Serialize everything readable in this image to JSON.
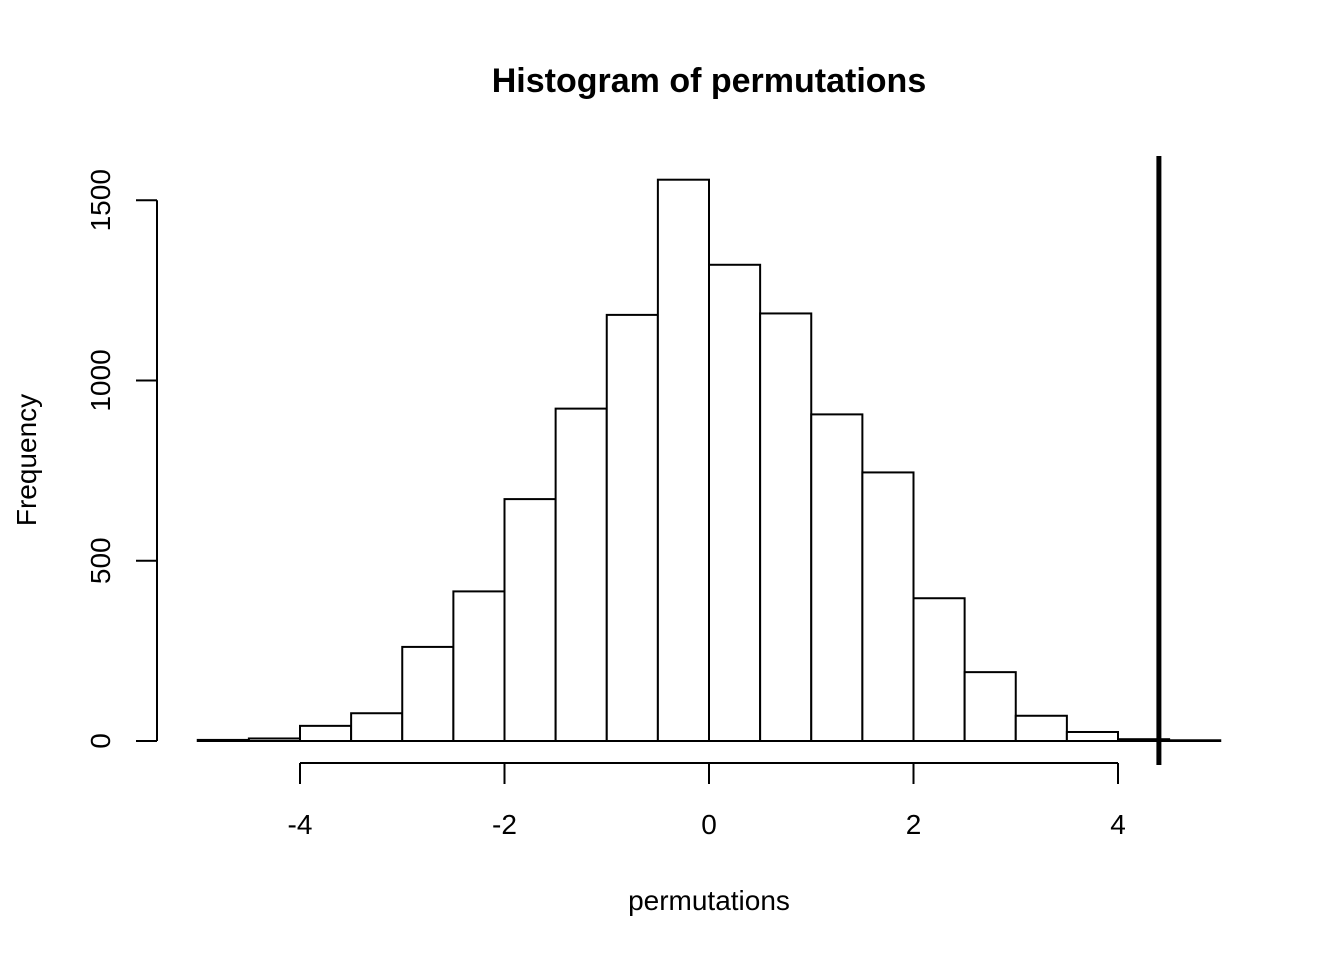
{
  "chart_data": {
    "type": "bar",
    "title": "Histogram of permutations",
    "xlabel": "permutations",
    "ylabel": "Frequency",
    "bin_edges": [
      -5,
      -4.5,
      -4,
      -3.5,
      -3,
      -2.5,
      -2,
      -1.5,
      -1,
      -0.5,
      0,
      0.5,
      1,
      1.5,
      2,
      2.5,
      3,
      3.5,
      4,
      4.5,
      5
    ],
    "values": [
      3,
      7,
      42,
      77,
      261,
      415,
      671,
      922,
      1182,
      1557,
      1321,
      1186,
      906,
      745,
      396,
      191,
      70,
      25,
      5,
      2
    ],
    "xlim": [
      -5,
      5
    ],
    "ylim": [
      0,
      1620
    ],
    "x_ticks": [
      -4,
      -2,
      0,
      2,
      4
    ],
    "x_tick_labels": [
      "-4",
      "-2",
      "0",
      "2",
      "4"
    ],
    "y_ticks": [
      0,
      500,
      1000,
      1500
    ],
    "y_tick_labels": [
      "0",
      "500",
      "1000",
      "1500"
    ],
    "vline_x": 4.4,
    "grid": false,
    "colors": {
      "bar_fill": "#ffffff",
      "bar_stroke": "#000000",
      "line": "#000000"
    }
  }
}
